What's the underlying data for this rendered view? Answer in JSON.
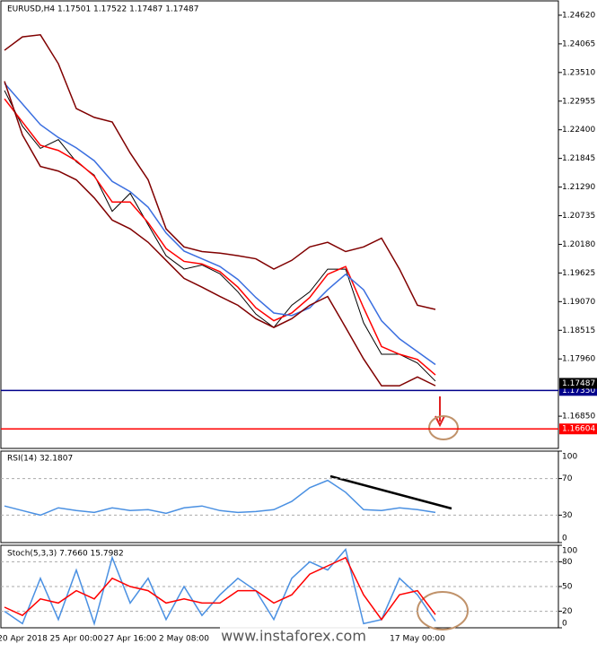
{
  "chart_data": [
    {
      "type": "line",
      "title": "EURUSD,H4 1.17501 1.17522 1.17487 1.17487",
      "ylim": [
        1.16226,
        1.24897
      ],
      "yticks": [
        {
          "value": 1.2462,
          "label": "1.24620"
        },
        1.24065,
        {
          "value": 1.2351,
          "label": "1.23510"
        },
        1.22955,
        {
          "value": 1.224,
          "label": "1.22400"
        },
        1.21845,
        {
          "value": 1.2129,
          "label": "1.21290"
        },
        1.20735,
        {
          "value": 1.2018,
          "label": "1.20180"
        },
        1.19625,
        {
          "value": 1.1907,
          "label": "1.19070"
        },
        1.18515,
        {
          "value": 1.1796,
          "label": "1.17960"
        },
        {
          "value": 1.1685,
          "label": "1.16850"
        }
      ],
      "last": 1.17487,
      "levels": [
        {
          "value": 1.1735,
          "label": "1.17350",
          "color": "#00008b"
        },
        {
          "value": 1.16604,
          "label": "1.16604",
          "color": "#ff0000"
        }
      ],
      "series": [
        {
          "color": "#000000",
          "values": [
            1.2316,
            1.2247,
            1.2204,
            1.2221,
            1.2178,
            1.2152,
            1.2082,
            1.2117,
            1.2056,
            1.1996,
            1.197,
            1.1978,
            1.1961,
            1.1926,
            1.1883,
            1.1857,
            1.19,
            1.1926,
            1.197,
            1.197,
            1.1866,
            1.1805,
            1.1805,
            1.1788,
            1.1753
          ]
        },
        {
          "color": "#ff0000",
          "values": [
            1.23,
            1.2255,
            1.221,
            1.22,
            1.218,
            1.215,
            1.21,
            1.21,
            1.206,
            1.201,
            1.1985,
            1.198,
            1.1965,
            1.1935,
            1.1895,
            1.187,
            1.1885,
            1.1915,
            1.196,
            1.1975,
            1.1895,
            1.182,
            1.1805,
            1.1795,
            1.1765
          ]
        },
        {
          "color": "#3b6fe0",
          "values": [
            1.233,
            1.229,
            1.225,
            1.2225,
            1.2205,
            1.218,
            1.214,
            1.212,
            1.209,
            1.204,
            1.2005,
            1.199,
            1.1975,
            1.195,
            1.1915,
            1.1885,
            1.188,
            1.1895,
            1.193,
            1.196,
            1.193,
            1.187,
            1.1835,
            1.181,
            1.1785
          ]
        },
        {
          "color": "#800000",
          "values": [
            1.2394,
            1.242,
            1.2424,
            1.2368,
            1.2281,
            1.2264,
            1.2255,
            1.2195,
            1.2143,
            1.2048,
            1.2013,
            1.2004,
            1.2001,
            1.1996,
            1.199,
            1.197,
            1.1987,
            1.2013,
            1.2022,
            1.2004,
            1.2013,
            1.203,
            1.197,
            1.19,
            1.1892
          ]
        },
        {
          "color": "#800000",
          "values": [
            1.2334,
            1.223,
            1.2169,
            1.216,
            1.2143,
            1.2108,
            1.2065,
            1.2048,
            1.2022,
            1.1987,
            1.1952,
            1.1935,
            1.1917,
            1.19,
            1.1874,
            1.1857,
            1.1874,
            1.19,
            1.1917,
            1.1857,
            1.1796,
            1.1744,
            1.1744,
            1.1761,
            1.1744
          ]
        }
      ]
    },
    {
      "type": "line",
      "title": "RSI(14) 32.1807",
      "ylim": [
        0,
        100
      ],
      "yticks": [
        100,
        70,
        30,
        0
      ],
      "series": [
        {
          "color": "#4a90e2",
          "values": [
            40,
            35,
            30,
            38,
            35,
            33,
            38,
            35,
            36,
            32,
            38,
            40,
            35,
            33,
            34,
            36,
            45,
            60,
            68,
            55,
            36,
            35,
            38,
            36,
            33
          ]
        }
      ]
    },
    {
      "type": "line",
      "title": "Stoch(5,3,3) 7.7660 15.7982",
      "ylim": [
        0,
        100
      ],
      "yticks": [
        100,
        80,
        50,
        20,
        0
      ],
      "categories": [
        null,
        "20 Apr 2018",
        null,
        null,
        "25 Apr 00:00",
        null,
        null,
        "27 Apr 16:00",
        null,
        null,
        "2 May 08:00",
        null,
        null,
        null,
        null,
        null,
        null,
        null,
        null,
        null,
        null,
        null,
        null,
        "17 May 00:00",
        null
      ],
      "series": [
        {
          "color": "#4a90e2",
          "values": [
            20,
            5,
            60,
            10,
            70,
            5,
            85,
            30,
            60,
            10,
            50,
            15,
            40,
            60,
            45,
            10,
            60,
            80,
            70,
            95,
            5,
            10,
            60,
            40,
            8
          ]
        },
        {
          "color": "#ff0000",
          "values": [
            25,
            15,
            35,
            30,
            45,
            35,
            60,
            50,
            45,
            30,
            35,
            30,
            30,
            45,
            45,
            30,
            40,
            65,
            75,
            85,
            40,
            10,
            40,
            45,
            16
          ]
        }
      ]
    }
  ],
  "watermark": "www.instaforex.com"
}
